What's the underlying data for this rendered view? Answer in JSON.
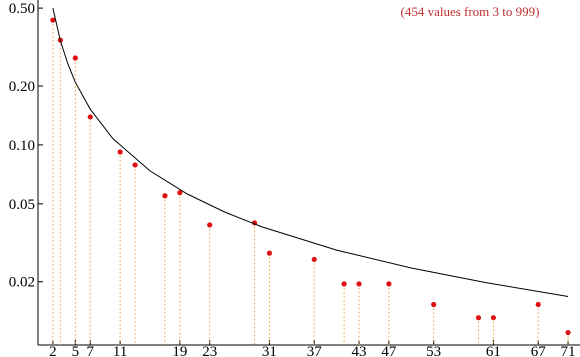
{
  "chart_data": {
    "type": "scatter",
    "annotation": "(454 values from 3 to  999)",
    "xlim": [
      0,
      72.6
    ],
    "ylim": [
      0.0095,
      0.55
    ],
    "log_y": true,
    "xticks": [
      2,
      5,
      7,
      11,
      19,
      23,
      31,
      37,
      43,
      47,
      53,
      61,
      67,
      71
    ],
    "yticks": [
      {
        "value": 0.5,
        "label": "0.50"
      },
      {
        "value": 0.2,
        "label": "0.20"
      },
      {
        "value": 0.1,
        "label": "0.10"
      },
      0.05,
      0.02
    ],
    "series": [
      {
        "kind": "points",
        "color": "#e01010",
        "drop_color": "#f0a030",
        "x": [
          2,
          3,
          5,
          7,
          11,
          13,
          17,
          19,
          23,
          29,
          31,
          37,
          41,
          43,
          47,
          53,
          59,
          61,
          67,
          71
        ],
        "values": [
          0.434,
          0.343,
          0.278,
          0.139,
          0.092,
          0.079,
          0.055,
          0.057,
          0.039,
          0.04,
          0.028,
          0.026,
          0.0195,
          0.0195,
          0.0195,
          0.0153,
          0.0131,
          0.0131,
          0.0153,
          0.011
        ]
      },
      {
        "kind": "line",
        "color": "#000000",
        "x": [
          2,
          3,
          4,
          5,
          7,
          10,
          15,
          20,
          25,
          30,
          40,
          50,
          60,
          71
        ],
        "values": [
          0.5,
          0.34,
          0.259,
          0.209,
          0.152,
          0.108,
          0.0737,
          0.0561,
          0.0454,
          0.0381,
          0.029,
          0.0235,
          0.0198,
          0.0168
        ]
      }
    ]
  }
}
